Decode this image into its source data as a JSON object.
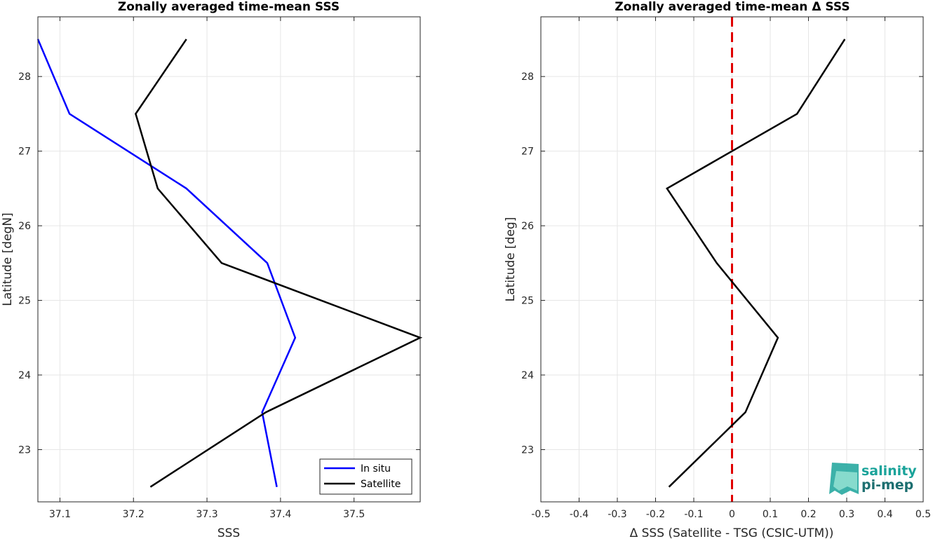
{
  "chart_data": [
    {
      "type": "line",
      "title": "Zonally averaged time-mean SSS",
      "xlabel": "SSS",
      "ylabel": "Latitude [degN]",
      "xlim": [
        37.07,
        37.59
      ],
      "ylim": [
        22.3,
        28.8
      ],
      "xticks": [
        "37.1",
        "37.2",
        "37.3",
        "37.4",
        "37.5"
      ],
      "yticks": [
        "23",
        "24",
        "25",
        "26",
        "27",
        "28"
      ],
      "grid": true,
      "legend": "bottom-right",
      "series": [
        {
          "name": "In situ",
          "color": "#0000ff",
          "points": [
            [
              37.395,
              22.5
            ],
            [
              37.375,
              23.5
            ],
            [
              37.42,
              24.5
            ],
            [
              37.382,
              25.5
            ],
            [
              37.272,
              26.5
            ],
            [
              37.113,
              27.5
            ],
            [
              37.07,
              28.5
            ]
          ]
        },
        {
          "name": "Satellite",
          "color": "#000000",
          "points": [
            [
              37.223,
              22.5
            ],
            [
              37.38,
              23.5
            ],
            [
              37.59,
              24.5
            ],
            [
              37.32,
              25.5
            ],
            [
              37.233,
              26.5
            ],
            [
              37.203,
              27.5
            ],
            [
              37.272,
              28.5
            ]
          ]
        }
      ]
    },
    {
      "type": "line",
      "title": "Zonally averaged time-mean Δ SSS",
      "xlabel": "Δ SSS (Satellite - TSG (CSIC-UTM))",
      "ylabel": "Latitude [deg]",
      "xlim": [
        -0.5,
        0.5
      ],
      "ylim": [
        22.3,
        28.8
      ],
      "xticks": [
        "-0.5",
        "-0.4",
        "-0.3",
        "-0.2",
        "-0.1",
        "0",
        "0.1",
        "0.2",
        "0.3",
        "0.4",
        "0.5"
      ],
      "yticks": [
        "23",
        "24",
        "25",
        "26",
        "27",
        "28"
      ],
      "grid": true,
      "reference_line": {
        "x": 0,
        "color": "#e00000",
        "style": "dashed"
      },
      "series": [
        {
          "color": "#000000",
          "points": [
            [
              -0.165,
              22.5
            ],
            [
              0.035,
              23.5
            ],
            [
              0.12,
              24.5
            ],
            [
              -0.04,
              25.5
            ],
            [
              -0.17,
              26.5
            ],
            [
              0.17,
              27.5
            ],
            [
              0.295,
              28.5
            ]
          ]
        }
      ]
    }
  ],
  "logo": {
    "line1": "salinity",
    "line2": "pi-mep"
  }
}
